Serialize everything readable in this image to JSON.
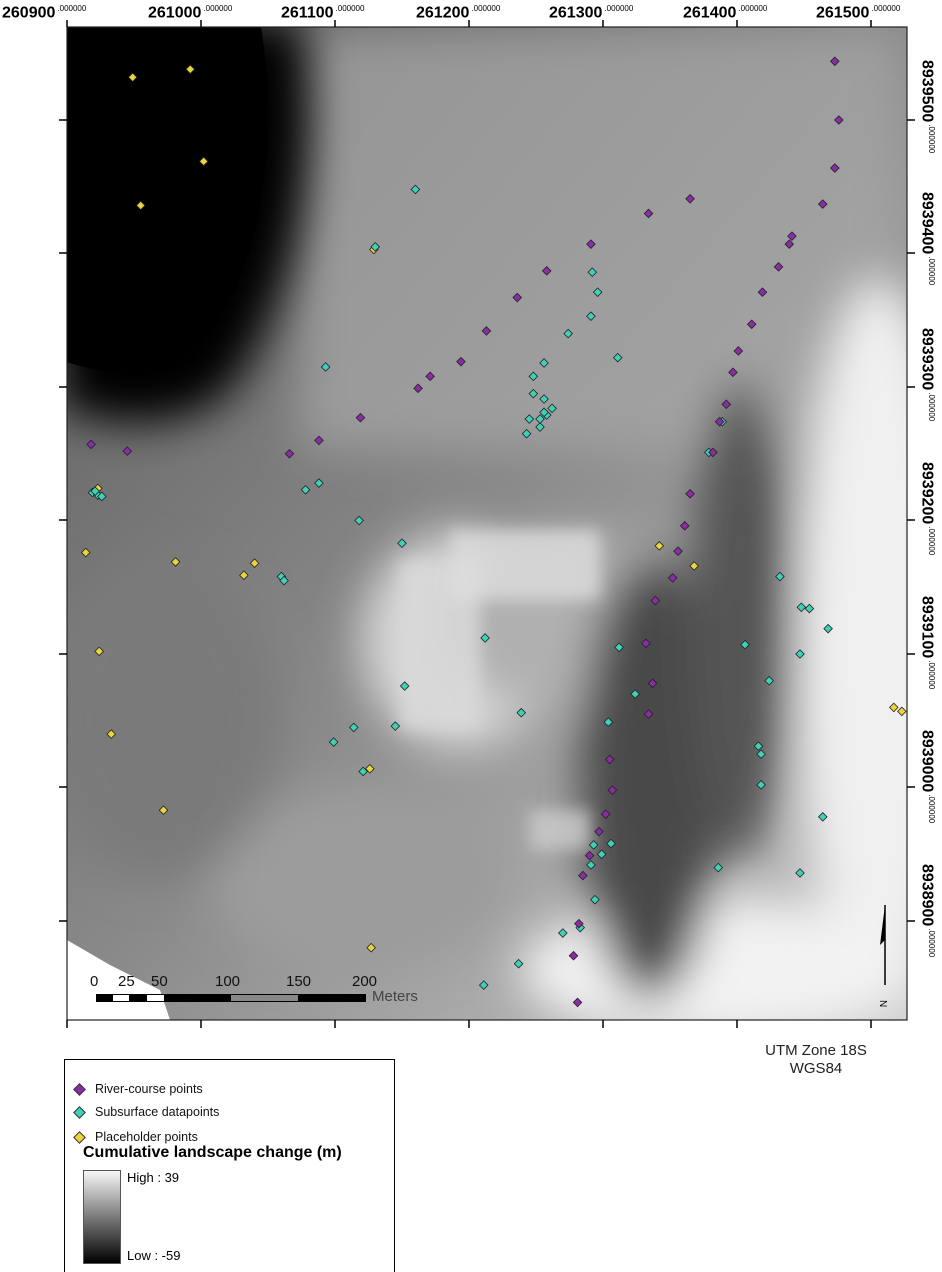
{
  "x_axis": {
    "labels": [
      "260900",
      "261000",
      "261100",
      "261200",
      "261300",
      "261400",
      "261500"
    ],
    "decimal": ".000000"
  },
  "y_axis": {
    "labels": [
      "8939500",
      "8939400",
      "8939300",
      "8939200",
      "8939100",
      "8939000",
      "8938900"
    ],
    "decimal": ".000000"
  },
  "scale_bar": {
    "ticks": [
      "0",
      "25",
      "50",
      "100",
      "150",
      "200"
    ],
    "unit": "Meters"
  },
  "north_arrow": {
    "label": "N"
  },
  "projection": {
    "line1": "UTM Zone 18S",
    "line2": "WGS84"
  },
  "legend": {
    "items": [
      {
        "label": "River-course points",
        "color": "#8a2ca6"
      },
      {
        "label": "Subsurface datapoints",
        "color": "#3fd1b8"
      },
      {
        "label": "Placeholder points",
        "color": "#e8d43c"
      }
    ],
    "ramp_title": "Cumulative landscape change (m)",
    "high": "High : 39",
    "low": "Low : -59"
  },
  "points": {
    "river": [
      [
        261473,
        8939544
      ],
      [
        261476,
        8939500
      ],
      [
        261473,
        8939464
      ],
      [
        261464,
        8939437
      ],
      [
        261441,
        8939413
      ],
      [
        261365,
        8939441
      ],
      [
        261439,
        8939407
      ],
      [
        261431,
        8939390
      ],
      [
        261419,
        8939371
      ],
      [
        261411,
        8939347
      ],
      [
        261401,
        8939327
      ],
      [
        261397,
        8939311
      ],
      [
        261392,
        8939287
      ],
      [
        261387,
        8939274
      ],
      [
        261382,
        8939251
      ],
      [
        261334,
        8939430
      ],
      [
        261291,
        8939407
      ],
      [
        261258,
        8939387
      ],
      [
        261236,
        8939367
      ],
      [
        261213,
        8939342
      ],
      [
        261194,
        8939319
      ],
      [
        261171,
        8939308
      ],
      [
        261162,
        8939299
      ],
      [
        261119,
        8939277
      ],
      [
        261088,
        8939260
      ],
      [
        261066,
        8939250
      ],
      [
        260918,
        8939257
      ],
      [
        260945,
        8939252
      ],
      [
        261365,
        8939220
      ],
      [
        261361,
        8939196
      ],
      [
        261356,
        8939177
      ],
      [
        261352,
        8939157
      ],
      [
        261339,
        8939140
      ],
      [
        261332,
        8939108
      ],
      [
        261337,
        8939078
      ],
      [
        261334,
        8939055
      ],
      [
        261305,
        8939021
      ],
      [
        261307,
        8938998
      ],
      [
        261302,
        8938980
      ],
      [
        261297,
        8938967
      ],
      [
        261290,
        8938949
      ],
      [
        261285,
        8938934
      ],
      [
        261282,
        8938898
      ],
      [
        261278,
        8938874
      ],
      [
        261281,
        8938839
      ]
    ],
    "subsurface": [
      [
        261160,
        8939448
      ],
      [
        261130,
        8939405
      ],
      [
        261292,
        8939386
      ],
      [
        261296,
        8939371
      ],
      [
        261291,
        8939353
      ],
      [
        261274,
        8939340
      ],
      [
        261256,
        8939318
      ],
      [
        261248,
        8939308
      ],
      [
        261248,
        8939295
      ],
      [
        261256,
        8939291
      ],
      [
        261262,
        8939284
      ],
      [
        261258,
        8939279
      ],
      [
        261253,
        8939270
      ],
      [
        261243,
        8939265
      ],
      [
        261253,
        8939276
      ],
      [
        261245,
        8939276
      ],
      [
        261256,
        8939281
      ],
      [
        261311,
        8939322
      ],
      [
        261093,
        8939315
      ],
      [
        261389,
        8939274
      ],
      [
        261379,
        8939251
      ],
      [
        260919,
        8939221
      ],
      [
        260923,
        8939219
      ],
      [
        260926,
        8939218
      ],
      [
        260921,
        8939222
      ],
      [
        261088,
        8939228
      ],
      [
        261078,
        8939223
      ],
      [
        261118,
        8939200
      ],
      [
        261150,
        8939183
      ],
      [
        261060,
        8939158
      ],
      [
        261062,
        8939155
      ],
      [
        261432,
        8939158
      ],
      [
        261448,
        8939135
      ],
      [
        261454,
        8939134
      ],
      [
        261468,
        8939119
      ],
      [
        261406,
        8939107
      ],
      [
        261447,
        8939100
      ],
      [
        261424,
        8939080
      ],
      [
        261312,
        8939105
      ],
      [
        261212,
        8939112
      ],
      [
        261152,
        8939076
      ],
      [
        261239,
        8939056
      ],
      [
        261324,
        8939070
      ],
      [
        261304,
        8939049
      ],
      [
        261145,
        8939046
      ],
      [
        261114,
        8939045
      ],
      [
        261099,
        8939034
      ],
      [
        261121,
        8939012
      ],
      [
        261416,
        8939031
      ],
      [
        261418,
        8939025
      ],
      [
        261418,
        8939002
      ],
      [
        261464,
        8938978
      ],
      [
        261306,
        8938958
      ],
      [
        261299,
        8938950
      ],
      [
        261291,
        8938942
      ],
      [
        261293,
        8938957
      ],
      [
        261386,
        8938940
      ],
      [
        261447,
        8938936
      ],
      [
        261294,
        8938916
      ],
      [
        261283,
        8938895
      ],
      [
        261270,
        8938891
      ],
      [
        261237,
        8938868
      ],
      [
        261211,
        8938852
      ]
    ],
    "placeholder": [
      [
        260949,
        8939532
      ],
      [
        260992,
        8939538
      ],
      [
        261002,
        8939469
      ],
      [
        260955,
        8939436
      ],
      [
        260923,
        8939224
      ],
      [
        261129,
        8939403
      ],
      [
        260914,
        8939176
      ],
      [
        260981,
        8939169
      ],
      [
        261040,
        8939168
      ],
      [
        261032,
        8939159
      ],
      [
        261342,
        8939181
      ],
      [
        261368,
        8939166
      ],
      [
        260924,
        8939102
      ],
      [
        260933,
        8939040
      ],
      [
        261126,
        8939014
      ],
      [
        260972,
        8938983
      ],
      [
        261127,
        8938880
      ],
      [
        261517,
        8939060
      ],
      [
        261523,
        8939057
      ]
    ]
  }
}
